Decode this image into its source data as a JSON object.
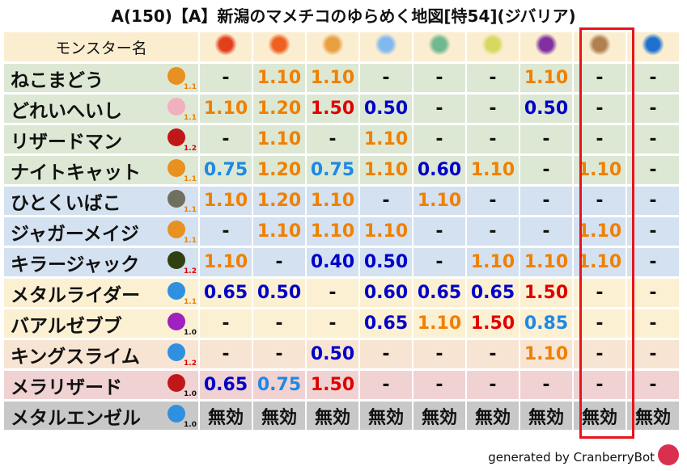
{
  "title": "A(150)【A】新潟のマメチコのゆらめく地図[特54](ジバリア)",
  "header": {
    "name_label": "モンスター名",
    "elements": [
      {
        "icon": "mera-fire-icon",
        "color": "#e0401a"
      },
      {
        "icon": "gira-flame-icon",
        "color": "#f06020"
      },
      {
        "icon": "io-explosion-icon",
        "color": "#e8a040"
      },
      {
        "icon": "hyado-ice-icon",
        "color": "#80b8f0"
      },
      {
        "icon": "bagi-wind-icon",
        "color": "#70b890"
      },
      {
        "icon": "dein-lightning-icon",
        "color": "#d8d860"
      },
      {
        "icon": "doruma-darkness-icon",
        "color": "#8030a0"
      },
      {
        "icon": "jibaria-earth-icon",
        "color": "#b08050"
      },
      {
        "icon": "aqua-water-icon",
        "color": "#2070d0"
      }
    ]
  },
  "highlight_column": 8,
  "colors": {
    "orange": "#f08000",
    "red": "#e00000",
    "blue": "#0000c8",
    "lightblue": "#1e88e5",
    "black": "#111111"
  },
  "rows": [
    {
      "name": "ねこまどう",
      "icon": "paw-icon",
      "icon_color": "#e89020",
      "scale": "1.1",
      "scale_color": "orange",
      "bg": "#dce8d4",
      "values": [
        [
          "-",
          "black"
        ],
        [
          "1.10",
          "orange"
        ],
        [
          "1.10",
          "orange"
        ],
        [
          "-",
          "black"
        ],
        [
          "-",
          "black"
        ],
        [
          "-",
          "black"
        ],
        [
          "1.10",
          "orange"
        ],
        [
          "-",
          "black"
        ],
        [
          "-",
          "black"
        ]
      ]
    },
    {
      "name": "どれいへいし",
      "icon": "skull-icon",
      "icon_color": "#f0b0c0",
      "scale": "1.1",
      "scale_color": "orange",
      "bg": "#dce8d4",
      "values": [
        [
          "1.10",
          "orange"
        ],
        [
          "1.20",
          "orange"
        ],
        [
          "1.50",
          "red"
        ],
        [
          "0.50",
          "blue"
        ],
        [
          "-",
          "black"
        ],
        [
          "-",
          "black"
        ],
        [
          "0.50",
          "blue"
        ],
        [
          "-",
          "black"
        ],
        [
          "-",
          "black"
        ]
      ]
    },
    {
      "name": "リザードマン",
      "icon": "dragon-icon",
      "icon_color": "#c01818",
      "scale": "1.2",
      "scale_color": "red",
      "bg": "#dce8d4",
      "values": [
        [
          "-",
          "black"
        ],
        [
          "1.10",
          "orange"
        ],
        [
          "-",
          "black"
        ],
        [
          "1.10",
          "orange"
        ],
        [
          "-",
          "black"
        ],
        [
          "-",
          "black"
        ],
        [
          "-",
          "black"
        ],
        [
          "-",
          "black"
        ],
        [
          "-",
          "black"
        ]
      ]
    },
    {
      "name": "ナイトキャット",
      "icon": "paw-icon",
      "icon_color": "#e89020",
      "scale": "1.1",
      "scale_color": "orange",
      "bg": "#dce8d4",
      "values": [
        [
          "0.75",
          "lightblue"
        ],
        [
          "1.20",
          "orange"
        ],
        [
          "0.75",
          "lightblue"
        ],
        [
          "1.10",
          "orange"
        ],
        [
          "0.60",
          "blue"
        ],
        [
          "1.10",
          "orange"
        ],
        [
          "-",
          "black"
        ],
        [
          "1.10",
          "orange"
        ],
        [
          "-",
          "black"
        ]
      ]
    },
    {
      "name": "ひとくいばこ",
      "icon": "brick-icon",
      "icon_color": "#707060",
      "scale": "1.1",
      "scale_color": "orange",
      "bg": "#d4e1f0",
      "values": [
        [
          "1.10",
          "orange"
        ],
        [
          "1.20",
          "orange"
        ],
        [
          "1.10",
          "orange"
        ],
        [
          "-",
          "black"
        ],
        [
          "1.10",
          "orange"
        ],
        [
          "-",
          "black"
        ],
        [
          "-",
          "black"
        ],
        [
          "-",
          "black"
        ],
        [
          "-",
          "black"
        ]
      ]
    },
    {
      "name": "ジャガーメイジ",
      "icon": "paw-icon",
      "icon_color": "#e89020",
      "scale": "1.1",
      "scale_color": "orange",
      "bg": "#d4e1f0",
      "values": [
        [
          "-",
          "black"
        ],
        [
          "1.10",
          "orange"
        ],
        [
          "1.10",
          "orange"
        ],
        [
          "1.10",
          "orange"
        ],
        [
          "-",
          "black"
        ],
        [
          "-",
          "black"
        ],
        [
          "-",
          "black"
        ],
        [
          "1.10",
          "orange"
        ],
        [
          "-",
          "black"
        ]
      ]
    },
    {
      "name": "キラージャック",
      "icon": "slime-green-icon",
      "icon_color": "#304010",
      "scale": "1.2",
      "scale_color": "red",
      "bg": "#d4e1f0",
      "values": [
        [
          "1.10",
          "orange"
        ],
        [
          "-",
          "black"
        ],
        [
          "0.40",
          "blue"
        ],
        [
          "0.50",
          "blue"
        ],
        [
          "-",
          "black"
        ],
        [
          "1.10",
          "orange"
        ],
        [
          "1.10",
          "orange"
        ],
        [
          "1.10",
          "orange"
        ],
        [
          "-",
          "black"
        ]
      ]
    },
    {
      "name": "メタルライダー",
      "icon": "slime-icon",
      "icon_color": "#3090e0",
      "scale": "1.1",
      "scale_color": "orange",
      "bg": "#fcf0d2",
      "values": [
        [
          "0.65",
          "blue"
        ],
        [
          "0.50",
          "blue"
        ],
        [
          "-",
          "black"
        ],
        [
          "0.60",
          "blue"
        ],
        [
          "0.65",
          "blue"
        ],
        [
          "0.65",
          "blue"
        ],
        [
          "1.50",
          "red"
        ],
        [
          "-",
          "black"
        ],
        [
          "-",
          "black"
        ]
      ]
    },
    {
      "name": "バアルゼブブ",
      "icon": "trident-icon",
      "icon_color": "#a020c0",
      "scale": "1.0",
      "scale_color": "black",
      "bg": "#fcf0d2",
      "values": [
        [
          "-",
          "black"
        ],
        [
          "-",
          "black"
        ],
        [
          "-",
          "black"
        ],
        [
          "0.65",
          "blue"
        ],
        [
          "1.10",
          "orange"
        ],
        [
          "1.50",
          "red"
        ],
        [
          "0.85",
          "lightblue"
        ],
        [
          "-",
          "black"
        ],
        [
          "-",
          "black"
        ]
      ]
    },
    {
      "name": "キングスライム",
      "icon": "slime-icon",
      "icon_color": "#3090e0",
      "scale": "1.2",
      "scale_color": "red",
      "bg": "#f8e4d2",
      "values": [
        [
          "-",
          "black"
        ],
        [
          "-",
          "black"
        ],
        [
          "0.50",
          "blue"
        ],
        [
          "-",
          "black"
        ],
        [
          "-",
          "black"
        ],
        [
          "-",
          "black"
        ],
        [
          "1.10",
          "orange"
        ],
        [
          "-",
          "black"
        ],
        [
          "-",
          "black"
        ]
      ]
    },
    {
      "name": "メラリザード",
      "icon": "dragon-icon",
      "icon_color": "#c01818",
      "scale": "1.0",
      "scale_color": "black",
      "bg": "#f0d2d2",
      "values": [
        [
          "0.65",
          "blue"
        ],
        [
          "0.75",
          "lightblue"
        ],
        [
          "1.50",
          "red"
        ],
        [
          "-",
          "black"
        ],
        [
          "-",
          "black"
        ],
        [
          "-",
          "black"
        ],
        [
          "-",
          "black"
        ],
        [
          "-",
          "black"
        ],
        [
          "-",
          "black"
        ]
      ]
    },
    {
      "name": "メタルエンゼル",
      "icon": "slime-icon",
      "icon_color": "#3090e0",
      "scale": "1.0",
      "scale_color": "black",
      "bg": "#c8c8c8",
      "values": [
        [
          "無効",
          "black"
        ],
        [
          "無効",
          "black"
        ],
        [
          "無効",
          "black"
        ],
        [
          "無効",
          "black"
        ],
        [
          "無効",
          "black"
        ],
        [
          "無効",
          "black"
        ],
        [
          "無効",
          "black"
        ],
        [
          "無効",
          "black"
        ],
        [
          "無効",
          "black"
        ]
      ]
    }
  ],
  "footer": {
    "text": "generated by CranberryBot",
    "logo": "cranberrybot-logo-icon"
  }
}
